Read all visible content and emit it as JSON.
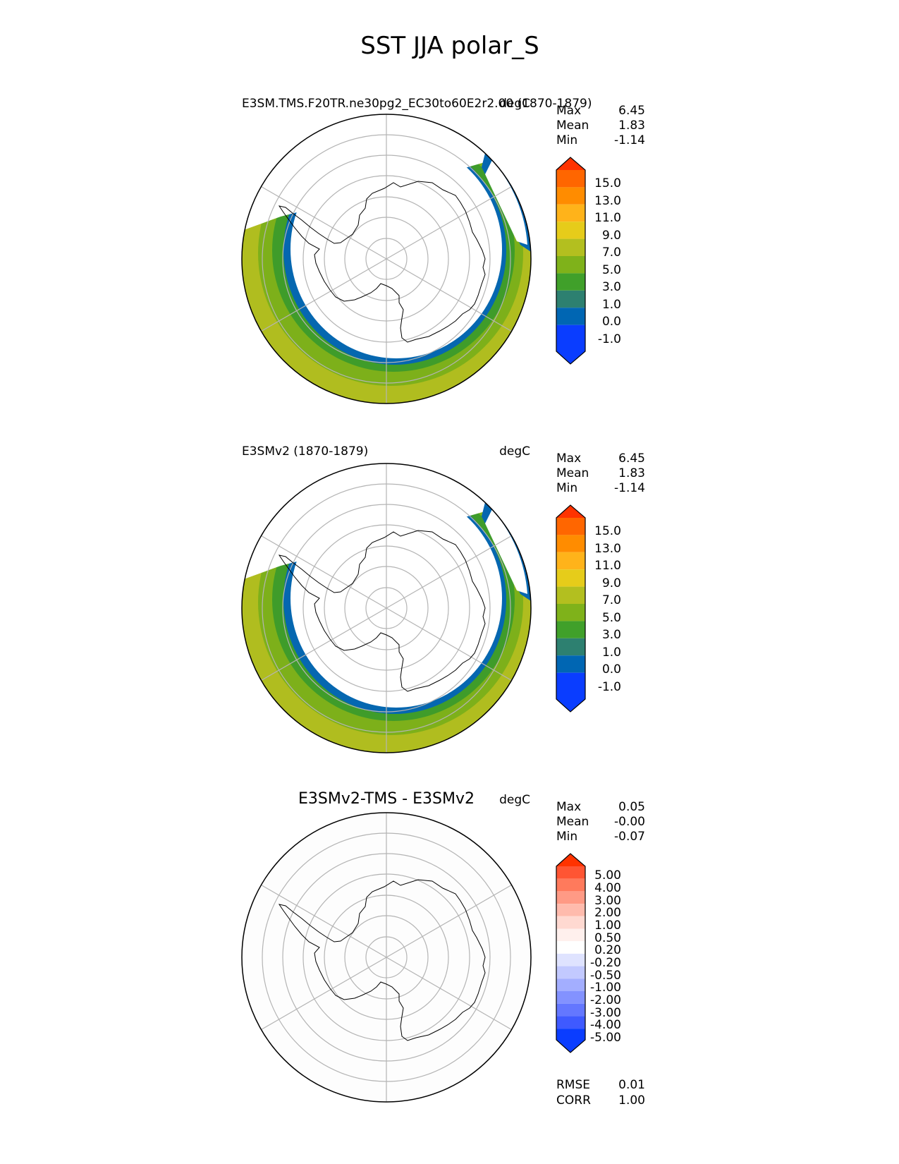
{
  "figure_title": "SST JJA polar_S",
  "colors": {
    "ocean_ramp": [
      "#b0bd1f",
      "#7db01a",
      "#3f9c2a",
      "#2e8a6e"
    ],
    "ice_edge": "#0567b0",
    "grid": "#b4b4b4",
    "land_outline": "#000000"
  },
  "panels": [
    {
      "title": "E3SM.TMS.F20TR.ne30pg2_EC30to60E2r2.00 (1870-1879)",
      "title_style": "left",
      "units": "degC",
      "stats": [
        {
          "label": "Max",
          "value": "6.45"
        },
        {
          "label": "Mean",
          "value": "1.83"
        },
        {
          "label": "Min",
          "value": "-1.14"
        }
      ],
      "colorbar": {
        "labels": [
          "15.0",
          "13.0",
          "11.0",
          "9.0",
          "7.0",
          "5.0",
          "3.0",
          "1.0",
          "0.0",
          "-1.0"
        ],
        "colors": [
          "#ff3300",
          "#ff6600",
          "#ff8c00",
          "#ffb31a",
          "#e6cc1a",
          "#b3bf1f",
          "#7fb21a",
          "#40a02a",
          "#2d8070",
          "#0066b3",
          "#0a3dff"
        ]
      },
      "map_fill": "model"
    },
    {
      "title": "E3SMv2 (1870-1879)",
      "title_style": "left",
      "units": "degC",
      "stats": [
        {
          "label": "Max",
          "value": "6.45"
        },
        {
          "label": "Mean",
          "value": "1.83"
        },
        {
          "label": "Min",
          "value": "-1.14"
        }
      ],
      "colorbar": {
        "labels": [
          "15.0",
          "13.0",
          "11.0",
          "9.0",
          "7.0",
          "5.0",
          "3.0",
          "1.0",
          "0.0",
          "-1.0"
        ],
        "colors": [
          "#ff3300",
          "#ff6600",
          "#ff8c00",
          "#ffb31a",
          "#e6cc1a",
          "#b3bf1f",
          "#7fb21a",
          "#40a02a",
          "#2d8070",
          "#0066b3",
          "#0a3dff"
        ]
      },
      "map_fill": "model"
    },
    {
      "title": "E3SMv2-TMS - E3SMv2",
      "title_style": "center",
      "units": "degC",
      "stats": [
        {
          "label": "Max",
          "value": "0.05"
        },
        {
          "label": "Mean",
          "value": "-0.00"
        },
        {
          "label": "Min",
          "value": "-0.07"
        }
      ],
      "colorbar": {
        "labels": [
          "5.00",
          "4.00",
          "3.00",
          "2.00",
          "1.00",
          "0.50",
          "0.20",
          "-0.20",
          "-0.50",
          "-1.00",
          "-2.00",
          "-3.00",
          "-4.00",
          "-5.00"
        ],
        "colors": [
          "#ff3300",
          "#ff5533",
          "#ff7a5c",
          "#ff9a85",
          "#ffbbad",
          "#ffd9d1",
          "#fff0ed",
          "#ffffff",
          "#dfe3ff",
          "#c2c9ff",
          "#a3aeff",
          "#8392ff",
          "#6477ff",
          "#3f5aff",
          "#0a3dff"
        ]
      },
      "map_fill": "difference",
      "metrics": [
        {
          "label": "RMSE",
          "value": "0.01"
        },
        {
          "label": "CORR",
          "value": "1.00"
        }
      ]
    }
  ],
  "chart_data": [
    {
      "type": "heatmap",
      "title": "E3SM.TMS.F20TR.ne30pg2_EC30to60E2r2.00 (1870-1879)",
      "variable": "SST",
      "season": "JJA",
      "region": "polar_S",
      "units": "degC",
      "max": 6.45,
      "mean": 1.83,
      "min": -1.14,
      "contour_levels": [
        -1.0,
        0.0,
        1.0,
        3.0,
        5.0,
        7.0,
        9.0,
        11.0,
        13.0,
        15.0
      ]
    },
    {
      "type": "heatmap",
      "title": "E3SMv2 (1870-1879)",
      "variable": "SST",
      "season": "JJA",
      "region": "polar_S",
      "units": "degC",
      "max": 6.45,
      "mean": 1.83,
      "min": -1.14,
      "contour_levels": [
        -1.0,
        0.0,
        1.0,
        3.0,
        5.0,
        7.0,
        9.0,
        11.0,
        13.0,
        15.0
      ]
    },
    {
      "type": "heatmap",
      "title": "E3SMv2-TMS - E3SMv2",
      "variable": "SST",
      "season": "JJA",
      "region": "polar_S",
      "units": "degC",
      "max": 0.05,
      "mean": -0.0,
      "min": -0.07,
      "rmse": 0.01,
      "corr": 1.0,
      "contour_levels": [
        -5.0,
        -4.0,
        -3.0,
        -2.0,
        -1.0,
        -0.5,
        -0.2,
        0.2,
        0.5,
        1.0,
        2.0,
        3.0,
        4.0,
        5.0
      ]
    }
  ]
}
